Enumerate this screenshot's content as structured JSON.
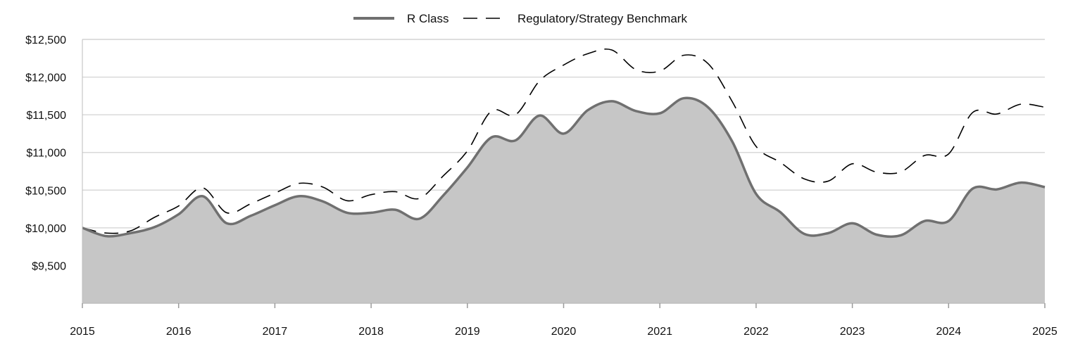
{
  "chart_data": {
    "type": "area",
    "title": "",
    "xlabel": "",
    "ylabel": "",
    "x": [
      2015.0,
      2015.25,
      2015.5,
      2015.75,
      2016.0,
      2016.25,
      2016.5,
      2016.75,
      2017.0,
      2017.25,
      2017.5,
      2017.75,
      2018.0,
      2018.25,
      2018.5,
      2018.75,
      2019.0,
      2019.25,
      2019.5,
      2019.75,
      2020.0,
      2020.25,
      2020.5,
      2020.75,
      2021.0,
      2021.25,
      2021.5,
      2021.75,
      2022.0,
      2022.25,
      2022.5,
      2022.75,
      2023.0,
      2023.25,
      2023.5,
      2023.75,
      2024.0,
      2024.25,
      2024.5,
      2024.75,
      2025.0
    ],
    "series": [
      {
        "name": "R Class",
        "style": "solid",
        "color": "#707070",
        "values": [
          10000,
          9890,
          9930,
          10010,
          10180,
          10420,
          10060,
          10160,
          10300,
          10420,
          10350,
          10200,
          10200,
          10240,
          10120,
          10430,
          10800,
          11200,
          11160,
          11490,
          11250,
          11560,
          11680,
          11550,
          11520,
          11720,
          11600,
          11150,
          10450,
          10210,
          9920,
          9930,
          10060,
          9910,
          9900,
          10090,
          10090,
          10520,
          10510,
          10600,
          10540
        ]
      },
      {
        "name": "Regulatory/Strategy Benchmark",
        "style": "dashed",
        "color": "#000000",
        "values": [
          10000,
          9930,
          9960,
          10140,
          10290,
          10530,
          10200,
          10320,
          10460,
          10590,
          10540,
          10360,
          10440,
          10480,
          10390,
          10690,
          11020,
          11550,
          11500,
          11950,
          12160,
          12310,
          12360,
          12100,
          12080,
          12290,
          12180,
          11680,
          11080,
          10870,
          10650,
          10620,
          10850,
          10740,
          10740,
          10960,
          10980,
          11530,
          11510,
          11640,
          11600
        ]
      }
    ],
    "x_ticks": [
      "2015",
      "2016",
      "2017",
      "2018",
      "2019",
      "2020",
      "2021",
      "2022",
      "2023",
      "2024",
      "2025"
    ],
    "y_ticks": [
      {
        "value": 9500,
        "label": "$9,500"
      },
      {
        "value": 10000,
        "label": "$10,000"
      },
      {
        "value": 10500,
        "label": "$10,500"
      },
      {
        "value": 11000,
        "label": "$11,000"
      },
      {
        "value": 11500,
        "label": "$11,500"
      },
      {
        "value": 12000,
        "label": "$12,000"
      },
      {
        "value": 12500,
        "label": "$12,500"
      }
    ],
    "xlim": [
      2015,
      2025
    ],
    "ylim": [
      9000,
      12500
    ],
    "grid": true,
    "legend": "top-center",
    "fill_color": "#c6c6c6",
    "grid_color": "#d9d9d9"
  }
}
